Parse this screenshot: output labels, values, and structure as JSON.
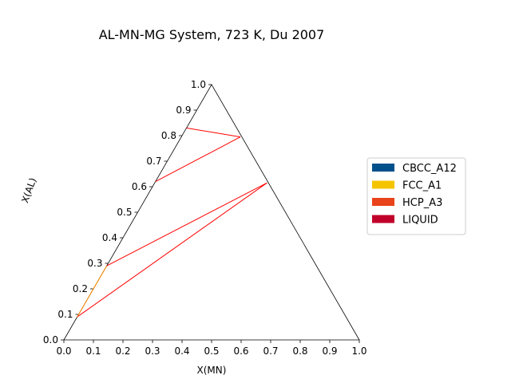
{
  "chart_data": {
    "type": "ternary-phase-diagram",
    "title": "AL-MN-MG System, 723 K, Du 2007",
    "xlabel": "X(MN)",
    "ylabel": "X(AL)",
    "xlim": [
      0.0,
      1.0
    ],
    "ylim": [
      0.0,
      1.0
    ],
    "x_ticks": [
      "0.0",
      "0.1",
      "0.2",
      "0.3",
      "0.4",
      "0.5",
      "0.6",
      "0.7",
      "0.8",
      "0.9",
      "1.0"
    ],
    "y_ticks": [
      "0.0",
      "0.1",
      "0.2",
      "0.3",
      "0.4",
      "0.5",
      "0.6",
      "0.7",
      "0.8",
      "0.9",
      "1.0"
    ],
    "legend": {
      "position": "right",
      "entries": [
        {
          "name": "CBCC_A12",
          "color": "#00508c"
        },
        {
          "name": "FCC_A1",
          "color": "#f5c400"
        },
        {
          "name": "HCP_A3",
          "color": "#e8431a"
        },
        {
          "name": "LIQUID",
          "color": "#c0002a"
        }
      ]
    },
    "tie_line_color": "#ff0000",
    "tie_lines": [
      {
        "from": {
          "x_mn": 0.0,
          "x_al": 0.83
        },
        "to": {
          "x_mn": 0.2,
          "x_al": 0.795
        }
      },
      {
        "from": {
          "x_mn": 0.0,
          "x_al": 0.62
        },
        "to": {
          "x_mn": 0.2,
          "x_al": 0.795
        }
      },
      {
        "from": {
          "x_mn": 0.0,
          "x_al": 0.29
        },
        "to": {
          "x_mn": 0.38,
          "x_al": 0.615
        }
      },
      {
        "from": {
          "x_mn": 0.0,
          "x_al": 0.09
        },
        "to": {
          "x_mn": 0.38,
          "x_al": 0.615
        }
      }
    ],
    "phase_boundary_segments": [
      {
        "from": {
          "x_mn": 0.0,
          "x_al": 0.09
        },
        "to": {
          "x_mn": 0.0,
          "x_al": 0.29
        },
        "color": "#ff8c00"
      }
    ]
  }
}
